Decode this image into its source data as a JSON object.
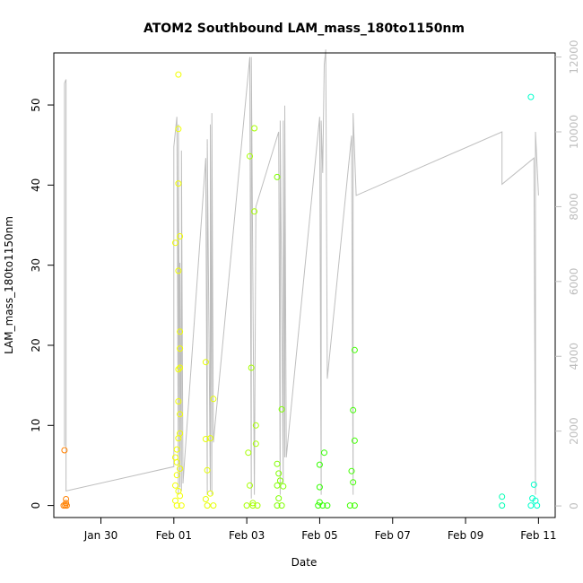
{
  "chart_data": {
    "type": "scatter",
    "title": "ATOM2 Southbound LAM_mass_180to1150nm",
    "xlabel": "Date",
    "ylabel": "LAM_mass_180to1150nm",
    "x_ticks": [
      "Jan 30",
      "Feb 01",
      "Feb 03",
      "Feb 05",
      "Feb 07",
      "Feb 09",
      "Feb 11"
    ],
    "y_ticks": [
      "0",
      "10",
      "20",
      "30",
      "40",
      "50"
    ],
    "y2_ticks": [
      "0",
      "2000",
      "4000",
      "6000",
      "8000",
      "10000",
      "12000"
    ],
    "xlim": [
      "2022-01-28T17:00",
      "2022-02-11T11:00"
    ],
    "ylim": [
      -1.5,
      56.5
    ],
    "y2lim": [
      -310,
      12110
    ],
    "colors": {
      "line": "#bebebe",
      "right_axis": "#bebebe"
    },
    "series": [
      {
        "color": "#ff8000",
        "points": [
          [
            "2022-01-29T00:00",
            6.9
          ],
          [
            "2022-01-29T01:00",
            0.8
          ],
          [
            "2022-01-29T01:00",
            0.3
          ],
          [
            "2022-01-28T23:30",
            0.0
          ],
          [
            "2022-01-29T00:30",
            0.0
          ],
          [
            "2022-01-29T01:30",
            0.0
          ]
        ]
      },
      {
        "color": "#f2ff00",
        "points": [
          [
            "2022-02-01T03:00",
            53.8
          ],
          [
            "2022-02-01T03:00",
            47.0
          ],
          [
            "2022-02-01T03:00",
            40.2
          ],
          [
            "2022-02-01T04:00",
            33.6
          ],
          [
            "2022-02-01T01:00",
            32.8
          ],
          [
            "2022-02-01T03:00",
            29.3
          ],
          [
            "2022-02-01T04:00",
            21.7
          ],
          [
            "2022-02-01T04:00",
            19.6
          ],
          [
            "2022-02-01T04:00",
            17.2
          ],
          [
            "2022-02-01T03:00",
            17.0
          ],
          [
            "2022-02-01T03:00",
            13.0
          ],
          [
            "2022-02-01T04:00",
            11.4
          ],
          [
            "2022-02-01T04:00",
            9.0
          ],
          [
            "2022-02-01T03:00",
            8.4
          ],
          [
            "2022-02-01T02:00",
            7.0
          ],
          [
            "2022-02-01T01:00",
            6.0
          ],
          [
            "2022-02-01T02:00",
            5.4
          ],
          [
            "2022-02-01T04:00",
            4.6
          ],
          [
            "2022-02-01T02:00",
            3.8
          ],
          [
            "2022-02-01T01:00",
            2.5
          ],
          [
            "2022-02-01T03:00",
            1.8
          ],
          [
            "2022-02-01T04:00",
            1.2
          ],
          [
            "2022-02-01T01:00",
            0.6
          ],
          [
            "2022-02-01T02:00",
            0.0
          ],
          [
            "2022-02-01T05:00",
            0.0
          ]
        ]
      },
      {
        "color": "#e6ff00",
        "points": [
          [
            "2022-02-01T21:00",
            17.9
          ],
          [
            "2022-02-02T02:00",
            13.3
          ],
          [
            "2022-02-01T21:00",
            8.3
          ],
          [
            "2022-02-02T00:00",
            8.4
          ],
          [
            "2022-02-01T22:00",
            4.4
          ],
          [
            "2022-02-02T00:00",
            1.5
          ],
          [
            "2022-02-01T21:00",
            0.8
          ],
          [
            "2022-02-01T22:00",
            0.0
          ],
          [
            "2022-02-02T02:00",
            0.0
          ]
        ]
      },
      {
        "color": "#a6ff00",
        "points": [
          [
            "2022-02-03T02:00",
            43.6
          ],
          [
            "2022-02-03T05:00",
            47.1
          ],
          [
            "2022-02-03T05:00",
            36.7
          ],
          [
            "2022-02-03T03:00",
            17.2
          ],
          [
            "2022-02-03T06:00",
            10.0
          ],
          [
            "2022-02-03T06:00",
            7.7
          ],
          [
            "2022-02-03T01:00",
            6.6
          ],
          [
            "2022-02-03T02:00",
            2.5
          ],
          [
            "2022-02-03T04:00",
            0.3
          ],
          [
            "2022-02-03T00:00",
            0.0
          ],
          [
            "2022-02-03T04:00",
            0.0
          ],
          [
            "2022-02-03T07:00",
            0.0
          ]
        ]
      },
      {
        "color": "#80ff00",
        "points": [
          [
            "2022-02-03T20:00",
            41.0
          ],
          [
            "2022-02-03T23:00",
            12.0
          ],
          [
            "2022-02-03T20:00",
            5.2
          ],
          [
            "2022-02-03T21:00",
            4.0
          ],
          [
            "2022-02-03T22:00",
            3.1
          ],
          [
            "2022-02-03T20:00",
            2.5
          ],
          [
            "2022-02-04T00:00",
            2.4
          ],
          [
            "2022-02-03T21:00",
            0.9
          ],
          [
            "2022-02-03T20:00",
            0.0
          ],
          [
            "2022-02-03T23:00",
            0.0
          ]
        ]
      },
      {
        "color": "#33ff00",
        "points": [
          [
            "2022-02-05T03:00",
            6.6
          ],
          [
            "2022-02-05T00:00",
            5.1
          ],
          [
            "2022-02-05T00:00",
            2.3
          ],
          [
            "2022-02-05T00:00",
            0.4
          ],
          [
            "2022-02-04T23:00",
            0.0
          ],
          [
            "2022-02-05T02:00",
            0.0
          ],
          [
            "2022-02-05T05:00",
            0.0
          ]
        ]
      },
      {
        "color": "#40ff00",
        "points": [
          [
            "2022-02-05T23:00",
            19.4
          ],
          [
            "2022-02-05T22:00",
            11.9
          ],
          [
            "2022-02-05T23:00",
            8.1
          ],
          [
            "2022-02-05T21:00",
            4.3
          ],
          [
            "2022-02-05T22:00",
            2.9
          ],
          [
            "2022-02-05T20:00",
            0.0
          ],
          [
            "2022-02-05T23:00",
            0.0
          ]
        ]
      },
      {
        "color": "#00ffb3",
        "points": [
          [
            "2022-02-10T00:00",
            1.1
          ],
          [
            "2022-02-10T00:00",
            0.0
          ]
        ]
      },
      {
        "color": "#00ffcc",
        "points": [
          [
            "2022-02-10T19:00",
            51.0
          ],
          [
            "2022-02-10T21:00",
            2.6
          ],
          [
            "2022-02-10T20:00",
            0.9
          ],
          [
            "2022-02-10T22:00",
            0.6
          ],
          [
            "2022-02-10T19:00",
            0.0
          ],
          [
            "2022-02-10T23:00",
            0.0
          ]
        ]
      }
    ],
    "line_series": {
      "axis": "right",
      "color": "#bebebe",
      "points": [
        [
          "2022-01-29T00:00",
          1600
        ],
        [
          "2022-01-29T00:00",
          11300
        ],
        [
          "2022-01-29T01:00",
          11400
        ],
        [
          "2022-01-29T01:00",
          400
        ],
        [
          "2022-02-01T00:00",
          1050
        ],
        [
          "2022-02-01T00:00",
          9600
        ],
        [
          "2022-02-01T02:00",
          10400
        ],
        [
          "2022-02-01T03:00",
          300
        ],
        [
          "2022-02-01T03:00",
          10200
        ],
        [
          "2022-02-01T04:00",
          500
        ],
        [
          "2022-02-01T04:00",
          6500
        ],
        [
          "2022-02-01T05:00",
          400
        ],
        [
          "2022-02-01T05:00",
          9500
        ],
        [
          "2022-02-01T06:00",
          600
        ],
        [
          "2022-02-01T21:00",
          9300
        ],
        [
          "2022-02-01T22:00",
          300
        ],
        [
          "2022-02-01T22:00",
          9800
        ],
        [
          "2022-02-02T00:00",
          400
        ],
        [
          "2022-02-02T00:00",
          10200
        ],
        [
          "2022-02-02T01:00",
          300
        ],
        [
          "2022-02-02T01:00",
          10500
        ],
        [
          "2022-02-02T02:00",
          1700
        ],
        [
          "2022-02-03T02:00",
          12000
        ],
        [
          "2022-02-03T03:00",
          200
        ],
        [
          "2022-02-03T03:00",
          12000
        ],
        [
          "2022-02-03T05:00",
          300
        ],
        [
          "2022-02-03T06:00",
          8000
        ],
        [
          "2022-02-03T21:00",
          10000
        ],
        [
          "2022-02-03T22:00",
          300
        ],
        [
          "2022-02-03T22:00",
          10300
        ],
        [
          "2022-02-04T00:00",
          600
        ],
        [
          "2022-02-04T00:00",
          10300
        ],
        [
          "2022-02-04T01:00",
          1300
        ],
        [
          "2022-02-04T01:00",
          10700
        ],
        [
          "2022-02-04T02:00",
          1300
        ],
        [
          "2022-02-05T00:00",
          10400
        ],
        [
          "2022-02-05T01:00",
          300
        ],
        [
          "2022-02-05T01:00",
          10300
        ],
        [
          "2022-02-05T02:00",
          8900
        ],
        [
          "2022-02-05T03:00",
          11800
        ],
        [
          "2022-02-05T04:00",
          12200
        ],
        [
          "2022-02-05T05:00",
          3400
        ],
        [
          "2022-02-05T21:00",
          9900
        ],
        [
          "2022-02-05T22:00",
          300
        ],
        [
          "2022-02-05T22:00",
          10500
        ],
        [
          "2022-02-06T00:00",
          8300
        ],
        [
          "2022-02-10T00:00",
          10000
        ],
        [
          "2022-02-10T00:00",
          8600
        ],
        [
          "2022-02-10T21:00",
          9300
        ],
        [
          "2022-02-10T22:00",
          300
        ],
        [
          "2022-02-10T22:00",
          10000
        ],
        [
          "2022-02-11T00:00",
          8300
        ]
      ]
    }
  }
}
